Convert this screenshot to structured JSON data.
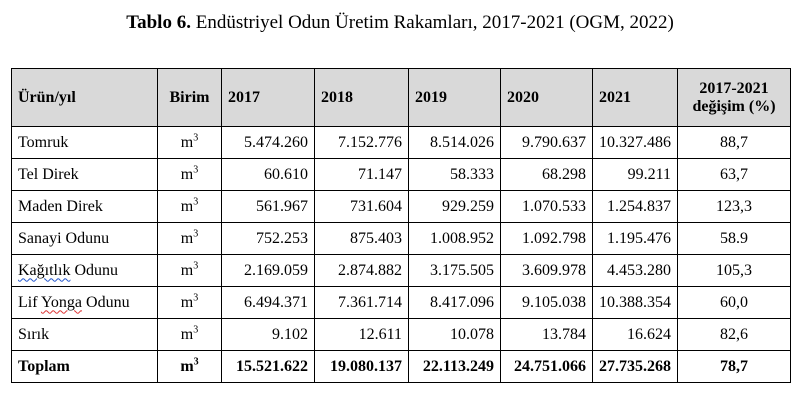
{
  "caption": {
    "label": "Tablo 6.",
    "text": "Endüstriyel Odun Üretim Rakamları, 2017-2021 (OGM, 2022)"
  },
  "table": {
    "headers": {
      "product": "Ürün/yıl",
      "unit": "Birim",
      "y2017": "2017",
      "y2018": "2018",
      "y2019": "2019",
      "y2020": "2020",
      "y2021": "2021",
      "change_line1": "2017-2021",
      "change_line2": "değişim (%)"
    },
    "unit_base": "m",
    "unit_exp": "3",
    "rows": [
      {
        "name": "Tomruk",
        "v2017": "5.474.260",
        "v2018": "7.152.776",
        "v2019": "8.514.026",
        "v2020": "9.790.637",
        "v2021": "10.327.486",
        "change": "88,7"
      },
      {
        "name": "Tel Direk",
        "v2017": "60.610",
        "v2018": "71.147",
        "v2019": "58.333",
        "v2020": "68.298",
        "v2021": "99.211",
        "change": "63,7"
      },
      {
        "name": "Maden Direk",
        "v2017": "561.967",
        "v2018": "731.604",
        "v2019": "929.259",
        "v2020": "1.070.533",
        "v2021": "1.254.837",
        "change": "123,3"
      },
      {
        "name": "Sanayi Odunu",
        "v2017": "752.253",
        "v2018": "875.403",
        "v2019": "1.008.952",
        "v2020": "1.092.798",
        "v2021": "1.195.476",
        "change": "58.9"
      },
      {
        "name_a": "Kağıtlık",
        "name_b": "Odunu",
        "v2017": "2.169.059",
        "v2018": "2.874.882",
        "v2019": "3.175.505",
        "v2020": "3.609.978",
        "v2021": "4.453.280",
        "change": "105,3"
      },
      {
        "name_a": "Lif",
        "name_b": "Yonga",
        "name_c": "Odunu",
        "v2017": "6.494.371",
        "v2018": "7.361.714",
        "v2019": "8.417.096",
        "v2020": "9.105.038",
        "v2021": "10.388.354",
        "change": "60,0"
      },
      {
        "name": "Sırık",
        "v2017": "9.102",
        "v2018": "12.611",
        "v2019": "10.078",
        "v2020": "13.784",
        "v2021": "16.624",
        "change": "82,6"
      }
    ],
    "total": {
      "name": "Toplam",
      "v2017": "15.521.622",
      "v2018": "19.080.137",
      "v2019": "22.113.249",
      "v2020": "24.751.066",
      "v2021": "27.735.268",
      "change": "78,7"
    }
  }
}
